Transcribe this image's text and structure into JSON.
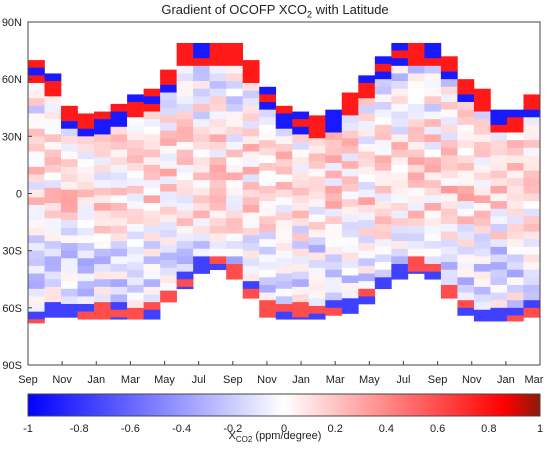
{
  "title": {
    "main": "Gradient of OCOFP XCO",
    "sub": "2",
    "tail": " with Latitude"
  },
  "colorbar_label": {
    "main": "X",
    "sub": "CO2",
    "tail": " (ppm/degree)"
  },
  "chart_data": {
    "type": "heatmap",
    "title": "Gradient of OCOFP XCO2 with Latitude",
    "x_ticks": [
      "Sep",
      "Nov",
      "Jan",
      "Mar",
      "May",
      "Jul",
      "Sep",
      "Nov",
      "Jan",
      "Mar",
      "May",
      "Jul",
      "Sep",
      "Nov",
      "Jan",
      "Mar"
    ],
    "y_ticks": [
      "90N",
      "60N",
      "30N",
      "0",
      "30S",
      "60S",
      "90S"
    ],
    "y_range": [
      -90,
      90
    ],
    "color_range": [
      -1,
      1
    ],
    "colorbar_ticks": [
      "-1",
      "-0.8",
      "-0.6",
      "-0.4",
      "-0.2",
      "0",
      "0.2",
      "0.4",
      "0.6",
      "0.8",
      "1"
    ],
    "colorbar_label": "XCO2 (ppm/degree)",
    "colormap": {
      "low": "#0000ff",
      "mid": "#ffffff",
      "high": "#ff0000"
    },
    "months": 31,
    "lat_coverage": [
      [
        -68,
        70
      ],
      [
        -65,
        63
      ],
      [
        -65,
        46
      ],
      [
        -66,
        42
      ],
      [
        -66,
        43
      ],
      [
        -66,
        47
      ],
      [
        -66,
        52
      ],
      [
        -66,
        55
      ],
      [
        -57,
        65
      ],
      [
        -50,
        79
      ],
      [
        -42,
        79
      ],
      [
        -40,
        79
      ],
      [
        -45,
        79
      ],
      [
        -55,
        70
      ],
      [
        -65,
        56
      ],
      [
        -66,
        46
      ],
      [
        -66,
        43
      ],
      [
        -66,
        41
      ],
      [
        -64,
        44
      ],
      [
        -63,
        53
      ],
      [
        -58,
        62
      ],
      [
        -50,
        72
      ],
      [
        -45,
        79
      ],
      [
        -42,
        79
      ],
      [
        -45,
        79
      ],
      [
        -55,
        72
      ],
      [
        -64,
        60
      ],
      [
        -67,
        55
      ],
      [
        -67,
        44
      ],
      [
        -67,
        44
      ],
      [
        -65,
        52
      ]
    ]
  }
}
